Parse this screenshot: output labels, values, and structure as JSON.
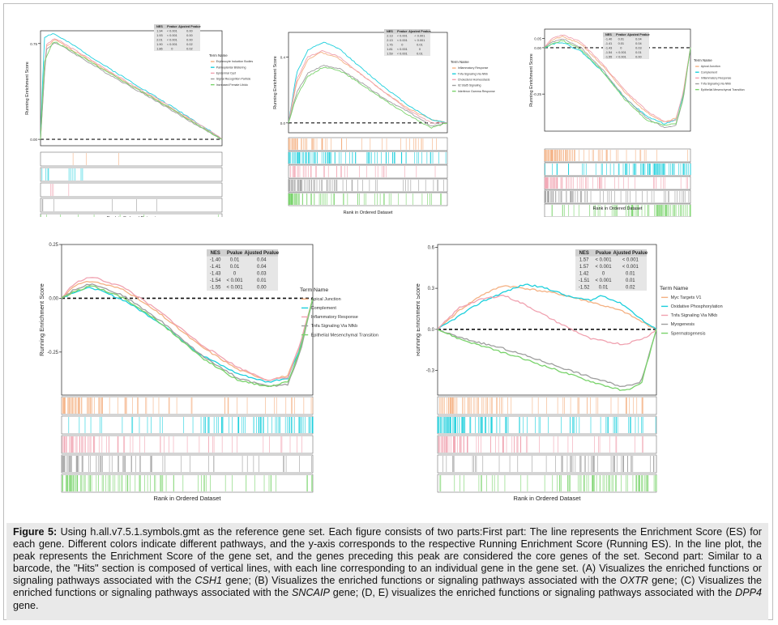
{
  "colors": {
    "orange": "#f4b183",
    "cyan": "#1ccfdc",
    "pink": "#f0a2b0",
    "gray": "#9e9e9e",
    "green": "#79d36b",
    "caption_bg": "#e9e9e9"
  },
  "caption": {
    "label": "Figure 5:",
    "part1": " Using h.all.v7.5.1.symbols.gmt as the reference gene set. Each figure consists of two parts:First part: The line represents the Enrichment Score (ES) for each gene. Different colors indicate different pathways, and the y-axis corresponds to the respective Running Enrichment Score (Running ES). In the line plot, the peak represents the Enrichment Score of the gene set, and the genes preceding this peak are considered the core genes of the set. Second part: Similar to a barcode, the \"Hits\" section is composed of vertical lines, with each line corresponding to an individual gene in the gene set. (A) Visualizes the enriched functions or signaling pathways associated with the ",
    "gene_a": "CSH1",
    "part2": " gene; (B) Visualizes the enriched functions or signaling pathways associated with the ",
    "gene_b": "OXTR",
    "part3": " gene; (C) Visualizes the enriched functions or signaling pathways associated with the ",
    "gene_c": "SNCAIP",
    "part4": " gene; (D, E) visualizes the enriched functions or signaling pathways associated with the ",
    "gene_de": "DPP4",
    "part5": " gene."
  },
  "chart_data": [
    {
      "type": "line",
      "panel": "A",
      "ylabel": "Running Enrichment Score",
      "xlabel": "Rank in Ordered Dataset",
      "ylim": [
        -0.05,
        0.85
      ],
      "yticks": [
        "0.00",
        "0.75"
      ],
      "ytick_values": [
        0.0,
        0.75
      ],
      "legend_title": "Term Name",
      "table_headers": [
        "NES",
        "Pvalue",
        "Ajusted Pvalue"
      ],
      "table_rows": [
        [
          "1.94",
          "< 0.001",
          "0.00"
        ],
        [
          "1.93",
          "< 0.001",
          "0.00"
        ],
        [
          "2.01",
          "< 0.001",
          "0.00"
        ],
        [
          "1.90",
          "< 0.001",
          "0.02"
        ],
        [
          "1.86",
          "0",
          "0.02"
        ]
      ],
      "series": [
        {
          "name": "Erythrocyte Induction Bodies",
          "color": "#f4b183",
          "hits": 3,
          "x": [
            0,
            0.03,
            0.08,
            0.2,
            0.35,
            0.5,
            0.65,
            0.8,
            0.95,
            1.0
          ],
          "y": [
            0,
            0.72,
            0.78,
            0.68,
            0.55,
            0.42,
            0.3,
            0.17,
            0.04,
            0.0
          ]
        },
        {
          "name": "Palmoplantar Blistering",
          "color": "#1ccfdc",
          "hits": 10,
          "x": [
            0,
            0.02,
            0.07,
            0.2,
            0.35,
            0.5,
            0.65,
            0.8,
            0.95,
            1.0
          ],
          "y": [
            0,
            0.8,
            0.83,
            0.72,
            0.58,
            0.45,
            0.32,
            0.19,
            0.05,
            0.0
          ]
        },
        {
          "name": "Epidermal Cyst",
          "color": "#f0a2b0",
          "hits": 4,
          "x": [
            0,
            0.03,
            0.08,
            0.2,
            0.35,
            0.5,
            0.65,
            0.8,
            0.95,
            1.0
          ],
          "y": [
            0,
            0.74,
            0.79,
            0.69,
            0.56,
            0.43,
            0.31,
            0.18,
            0.05,
            0.0
          ]
        },
        {
          "name": "Signal Recognition Particle",
          "color": "#9e9e9e",
          "hits": 6,
          "x": [
            0,
            0.03,
            0.08,
            0.2,
            0.35,
            0.5,
            0.65,
            0.8,
            0.95,
            1.0
          ],
          "y": [
            0,
            0.7,
            0.76,
            0.66,
            0.53,
            0.41,
            0.29,
            0.16,
            0.04,
            0.0
          ]
        },
        {
          "name": "Increased Female Libido",
          "color": "#79d36b",
          "hits": 8,
          "x": [
            0,
            0.02,
            0.07,
            0.2,
            0.35,
            0.5,
            0.65,
            0.8,
            0.95,
            1.0
          ],
          "y": [
            0,
            0.6,
            0.77,
            0.67,
            0.54,
            0.42,
            0.3,
            0.17,
            0.04,
            0.0
          ]
        }
      ]
    },
    {
      "type": "line",
      "panel": "B",
      "ylabel": "Running Enrichment Score",
      "xlabel": "Rank in Ordered Dataset",
      "ylim": [
        -0.06,
        0.55
      ],
      "yticks": [
        "0.0",
        "0.4"
      ],
      "ytick_values": [
        0.0,
        0.4
      ],
      "legend_title": "Term Name",
      "table_headers": [
        "NES",
        "Pvalue",
        "Ajusted Pvalue"
      ],
      "table_rows": [
        [
          "2.13",
          "< 0.001",
          "< 0.001"
        ],
        [
          "2.13",
          "< 0.001",
          "< 0.001"
        ],
        [
          "1.76",
          "0",
          "0.01"
        ],
        [
          "1.81",
          "< 0.001",
          "0"
        ],
        [
          "1.59",
          "< 0.001",
          "0.01"
        ]
      ],
      "series": [
        {
          "name": "Inflammatory Response",
          "color": "#f4b183",
          "hits": 60,
          "x": [
            0,
            0.05,
            0.12,
            0.2,
            0.3,
            0.45,
            0.6,
            0.75,
            0.9,
            1.0
          ],
          "y": [
            0,
            0.24,
            0.38,
            0.43,
            0.4,
            0.3,
            0.19,
            0.09,
            0.02,
            0.0
          ]
        },
        {
          "name": "Tnfa Signaling Via Nfkb",
          "color": "#1ccfdc",
          "hits": 90,
          "x": [
            0,
            0.05,
            0.12,
            0.22,
            0.32,
            0.45,
            0.6,
            0.75,
            0.9,
            1.0
          ],
          "y": [
            0,
            0.3,
            0.44,
            0.49,
            0.45,
            0.34,
            0.22,
            0.11,
            0.02,
            0.0
          ]
        },
        {
          "name": "Cholesterol Homeostasis",
          "color": "#f0a2b0",
          "hits": 40,
          "x": [
            0,
            0.05,
            0.12,
            0.22,
            0.32,
            0.45,
            0.6,
            0.75,
            0.9,
            1.0
          ],
          "y": [
            0,
            0.26,
            0.4,
            0.44,
            0.4,
            0.3,
            0.19,
            0.08,
            0.0,
            0.0
          ]
        },
        {
          "name": "Il2 Stat5 Signaling",
          "color": "#9e9e9e",
          "hits": 70,
          "x": [
            0,
            0.05,
            0.12,
            0.22,
            0.32,
            0.45,
            0.6,
            0.75,
            0.9,
            1.0
          ],
          "y": [
            0,
            0.18,
            0.3,
            0.35,
            0.33,
            0.25,
            0.15,
            0.07,
            -0.02,
            0.0
          ]
        },
        {
          "name": "Interferon Gamma Response",
          "color": "#79d36b",
          "hits": 70,
          "x": [
            0,
            0.05,
            0.12,
            0.22,
            0.32,
            0.45,
            0.6,
            0.75,
            0.9,
            1.0
          ],
          "y": [
            0,
            0.16,
            0.28,
            0.34,
            0.32,
            0.24,
            0.14,
            0.05,
            -0.03,
            0.0
          ]
        }
      ]
    },
    {
      "type": "line",
      "panel": "C",
      "ylabel": "Running Enrichment Score",
      "xlabel": "Rank in Ordered Dataset",
      "ylim": [
        -0.45,
        0.1
      ],
      "yticks": [
        "0.05",
        "0.00",
        "-0.25"
      ],
      "ytick_values": [
        0.05,
        0.0,
        -0.25
      ],
      "legend_title": "Term Name",
      "table_headers": [
        "NES",
        "Pvalue",
        "Ajusted Pvalue"
      ],
      "table_rows": [
        [
          "-1.40",
          "0.01",
          "0.04"
        ],
        [
          "-1.41",
          "0.01",
          "0.04"
        ],
        [
          "-1.43",
          "0",
          "0.03"
        ],
        [
          "-1.54",
          "< 0.001",
          "0.01"
        ],
        [
          "-1.55",
          "< 0.001",
          "0.00"
        ]
      ],
      "series": [
        {
          "name": "Apical Junction",
          "color": "#f4b183",
          "hits": 80,
          "x": [
            0,
            0.05,
            0.12,
            0.25,
            0.4,
            0.55,
            0.7,
            0.82,
            0.9,
            0.95,
            1.0
          ],
          "y": [
            0,
            0.04,
            0.06,
            0.02,
            -0.1,
            -0.24,
            -0.35,
            -0.4,
            -0.38,
            -0.25,
            0.0
          ]
        },
        {
          "name": "Complement",
          "color": "#1ccfdc",
          "hits": 90,
          "x": [
            0,
            0.05,
            0.12,
            0.25,
            0.4,
            0.55,
            0.7,
            0.82,
            0.9,
            0.95,
            1.0
          ],
          "y": [
            0,
            0.02,
            0.03,
            -0.02,
            -0.13,
            -0.27,
            -0.37,
            -0.41,
            -0.39,
            -0.26,
            0.0
          ]
        },
        {
          "name": "Inflammatory Response",
          "color": "#f0a2b0",
          "hits": 70,
          "x": [
            0,
            0.05,
            0.12,
            0.25,
            0.4,
            0.55,
            0.7,
            0.82,
            0.9,
            0.95,
            1.0
          ],
          "y": [
            0,
            0.05,
            0.07,
            0.03,
            -0.09,
            -0.23,
            -0.34,
            -0.4,
            -0.39,
            -0.24,
            0.0
          ]
        },
        {
          "name": "Tnfa Signaling Via Nfkb",
          "color": "#9e9e9e",
          "hits": 70,
          "x": [
            0,
            0.05,
            0.12,
            0.25,
            0.4,
            0.55,
            0.7,
            0.82,
            0.9,
            0.95,
            1.0
          ],
          "y": [
            0,
            0.03,
            0.05,
            0.0,
            -0.12,
            -0.27,
            -0.38,
            -0.43,
            -0.42,
            -0.28,
            0.0
          ]
        },
        {
          "name": "Epithelial Mesenchymal Transition",
          "color": "#79d36b",
          "hits": 90,
          "x": [
            0,
            0.05,
            0.12,
            0.25,
            0.4,
            0.55,
            0.7,
            0.82,
            0.9,
            0.95,
            1.0
          ],
          "y": [
            0,
            0.02,
            0.04,
            -0.01,
            -0.13,
            -0.28,
            -0.39,
            -0.42,
            -0.41,
            -0.27,
            0.0
          ]
        }
      ]
    },
    {
      "type": "line",
      "panel": "D",
      "ylabel": "Running Enrichment Score",
      "xlabel": "Rank in Ordered Dataset",
      "ylim": [
        -0.45,
        0.25
      ],
      "yticks": [
        "0.25",
        "0.00",
        "-0.25"
      ],
      "ytick_values": [
        0.25,
        0.0,
        -0.25
      ],
      "legend_title": "Term Name",
      "table_headers": [
        "NES",
        "Pvalue",
        "Ajusted Pvalue"
      ],
      "table_rows": [
        [
          "-1.40",
          "0.01",
          "0.04"
        ],
        [
          "-1.41",
          "0.01",
          "0.04"
        ],
        [
          "-1.43",
          "0",
          "0.03"
        ],
        [
          "-1.54",
          "< 0.001",
          "0.01"
        ],
        [
          "-1.55",
          "< 0.001",
          "0.00"
        ]
      ],
      "series": [
        {
          "name": "Apical Junction",
          "color": "#f4b183",
          "hits": 80,
          "x": [
            0,
            0.05,
            0.12,
            0.25,
            0.4,
            0.55,
            0.7,
            0.82,
            0.9,
            0.95,
            1.0
          ],
          "y": [
            0,
            0.06,
            0.08,
            0.04,
            -0.08,
            -0.22,
            -0.33,
            -0.38,
            -0.36,
            -0.22,
            0.0
          ]
        },
        {
          "name": "Complement",
          "color": "#1ccfdc",
          "hits": 90,
          "x": [
            0,
            0.05,
            0.12,
            0.25,
            0.4,
            0.55,
            0.7,
            0.82,
            0.9,
            0.95,
            1.0
          ],
          "y": [
            0,
            0.03,
            0.05,
            -0.01,
            -0.12,
            -0.26,
            -0.35,
            -0.39,
            -0.37,
            -0.23,
            0.0
          ]
        },
        {
          "name": "Inflammatory Response",
          "color": "#f0a2b0",
          "hits": 70,
          "x": [
            0,
            0.05,
            0.12,
            0.25,
            0.4,
            0.55,
            0.7,
            0.82,
            0.9,
            0.95,
            1.0
          ],
          "y": [
            0,
            0.07,
            0.1,
            0.05,
            -0.07,
            -0.21,
            -0.32,
            -0.38,
            -0.37,
            -0.21,
            0.0
          ]
        },
        {
          "name": "Tnfa Signaling Via Nfkb",
          "color": "#9e9e9e",
          "hits": 70,
          "x": [
            0,
            0.05,
            0.12,
            0.25,
            0.4,
            0.55,
            0.7,
            0.82,
            0.9,
            0.95,
            1.0
          ],
          "y": [
            0,
            0.04,
            0.07,
            0.01,
            -0.11,
            -0.26,
            -0.37,
            -0.41,
            -0.4,
            -0.25,
            0.0
          ]
        },
        {
          "name": "Epithelial Mesenchymal Transition",
          "color": "#79d36b",
          "hits": 90,
          "x": [
            0,
            0.05,
            0.12,
            0.25,
            0.4,
            0.55,
            0.7,
            0.82,
            0.9,
            0.95,
            1.0
          ],
          "y": [
            0,
            0.03,
            0.06,
            0.0,
            -0.12,
            -0.27,
            -0.38,
            -0.41,
            -0.39,
            -0.24,
            0.0
          ]
        }
      ]
    },
    {
      "type": "line",
      "panel": "E",
      "ylabel": "Running Enrichment Score",
      "xlabel": "Rank in Ordered Dataset",
      "ylim": [
        -0.48,
        0.62
      ],
      "yticks": [
        "0.6",
        "0.3",
        "0.0",
        "-0.3"
      ],
      "ytick_values": [
        0.6,
        0.3,
        0.0,
        -0.3
      ],
      "legend_title": "Term Name",
      "table_headers": [
        "NES",
        "Pvalue",
        "Ajusted Pvalue"
      ],
      "table_rows": [
        [
          "1.57",
          "< 0.001",
          "< 0.001"
        ],
        [
          "1.57",
          "< 0.001",
          "< 0.001"
        ],
        [
          "1.42",
          "0",
          "0.01"
        ],
        [
          "-1.51",
          "< 0.001",
          "0.01"
        ],
        [
          "-1.52",
          "0.01",
          "0.02"
        ]
      ],
      "series": [
        {
          "name": "Myc Targets V1",
          "color": "#f4b183",
          "hits": 80,
          "x": [
            0,
            0.1,
            0.2,
            0.3,
            0.4,
            0.55,
            0.7,
            0.85,
            0.95,
            1.0
          ],
          "y": [
            0,
            0.14,
            0.25,
            0.32,
            0.3,
            0.26,
            0.2,
            0.13,
            0.04,
            0.0
          ]
        },
        {
          "name": "Oxidative Phosphorylation",
          "color": "#1ccfdc",
          "hits": 110,
          "x": [
            0,
            0.1,
            0.2,
            0.3,
            0.4,
            0.5,
            0.6,
            0.7,
            0.75,
            0.85,
            0.95,
            1.0
          ],
          "y": [
            0,
            0.1,
            0.2,
            0.27,
            0.33,
            0.3,
            0.24,
            0.21,
            0.25,
            0.18,
            0.05,
            0.0
          ]
        },
        {
          "name": "Tnfa Signaling Via Nfkb",
          "color": "#f0a2b0",
          "hits": 70,
          "x": [
            0,
            0.1,
            0.2,
            0.3,
            0.4,
            0.55,
            0.7,
            0.85,
            0.95,
            1.0
          ],
          "y": [
            0,
            0.16,
            0.22,
            0.25,
            0.18,
            0.05,
            -0.07,
            -0.11,
            -0.06,
            0.0
          ]
        },
        {
          "name": "Myogenesis",
          "color": "#9e9e9e",
          "hits": 70,
          "x": [
            0,
            0.1,
            0.2,
            0.3,
            0.4,
            0.55,
            0.7,
            0.85,
            0.93,
            1.0
          ],
          "y": [
            0,
            -0.06,
            -0.1,
            -0.14,
            -0.19,
            -0.27,
            -0.35,
            -0.42,
            -0.38,
            0.0
          ]
        },
        {
          "name": "Spermatogenesis",
          "color": "#79d36b",
          "hits": 90,
          "x": [
            0,
            0.1,
            0.2,
            0.3,
            0.4,
            0.55,
            0.7,
            0.85,
            0.93,
            1.0
          ],
          "y": [
            0,
            -0.07,
            -0.12,
            -0.17,
            -0.22,
            -0.3,
            -0.38,
            -0.45,
            -0.4,
            0.0
          ]
        }
      ]
    }
  ]
}
